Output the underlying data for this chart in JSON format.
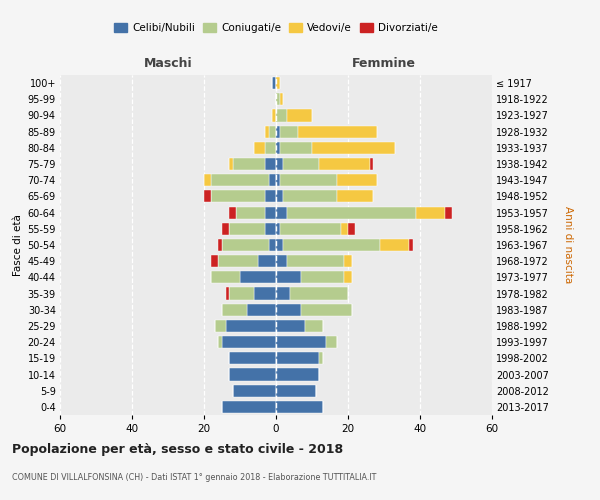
{
  "age_groups": [
    "0-4",
    "5-9",
    "10-14",
    "15-19",
    "20-24",
    "25-29",
    "30-34",
    "35-39",
    "40-44",
    "45-49",
    "50-54",
    "55-59",
    "60-64",
    "65-69",
    "70-74",
    "75-79",
    "80-84",
    "85-89",
    "90-94",
    "95-99",
    "100+"
  ],
  "birth_years": [
    "2013-2017",
    "2008-2012",
    "2003-2007",
    "1998-2002",
    "1993-1997",
    "1988-1992",
    "1983-1987",
    "1978-1982",
    "1973-1977",
    "1968-1972",
    "1963-1967",
    "1958-1962",
    "1953-1957",
    "1948-1952",
    "1943-1947",
    "1938-1942",
    "1933-1937",
    "1928-1932",
    "1923-1927",
    "1918-1922",
    "≤ 1917"
  ],
  "colors": {
    "celibi": "#4472a8",
    "coniugati": "#b5cc8e",
    "vedovi": "#f5c842",
    "divorziati": "#cc2222"
  },
  "males": {
    "celibi": [
      15,
      12,
      13,
      13,
      15,
      14,
      8,
      6,
      10,
      5,
      2,
      3,
      3,
      3,
      2,
      3,
      0,
      0,
      0,
      0,
      1
    ],
    "coniugati": [
      0,
      0,
      0,
      0,
      1,
      3,
      7,
      7,
      8,
      11,
      13,
      10,
      8,
      15,
      16,
      9,
      3,
      2,
      0,
      0,
      0
    ],
    "vedovi": [
      0,
      0,
      0,
      0,
      0,
      0,
      0,
      0,
      0,
      0,
      0,
      0,
      0,
      0,
      2,
      1,
      3,
      1,
      1,
      0,
      0
    ],
    "divorziati": [
      0,
      0,
      0,
      0,
      0,
      0,
      0,
      1,
      0,
      2,
      1,
      2,
      2,
      2,
      0,
      0,
      0,
      0,
      0,
      0,
      0
    ]
  },
  "females": {
    "celibi": [
      13,
      11,
      12,
      12,
      14,
      8,
      7,
      4,
      7,
      3,
      2,
      1,
      3,
      2,
      1,
      2,
      1,
      1,
      0,
      0,
      0
    ],
    "coniugati": [
      0,
      0,
      0,
      1,
      3,
      5,
      14,
      16,
      12,
      16,
      27,
      17,
      36,
      15,
      16,
      10,
      9,
      5,
      3,
      1,
      0
    ],
    "vedovi": [
      0,
      0,
      0,
      0,
      0,
      0,
      0,
      0,
      2,
      2,
      8,
      2,
      8,
      10,
      11,
      14,
      23,
      22,
      7,
      1,
      1
    ],
    "divorziati": [
      0,
      0,
      0,
      0,
      0,
      0,
      0,
      0,
      0,
      0,
      1,
      2,
      2,
      0,
      0,
      1,
      0,
      0,
      0,
      0,
      0
    ]
  },
  "xlim": 60,
  "title": "Popolazione per età, sesso e stato civile - 2018",
  "subtitle": "COMUNE DI VILLALFONSINA (CH) - Dati ISTAT 1° gennaio 2018 - Elaborazione TUTTITALIA.IT",
  "xlabel_left": "Maschi",
  "xlabel_right": "Femmine",
  "ylabel_left": "Fasce di età",
  "ylabel_right": "Anni di nascita",
  "legend_labels": [
    "Celibi/Nubili",
    "Coniugati/e",
    "Vedovi/e",
    "Divorziati/e"
  ],
  "bg_color": "#f5f5f5",
  "plot_bg_color": "#ebebeb"
}
